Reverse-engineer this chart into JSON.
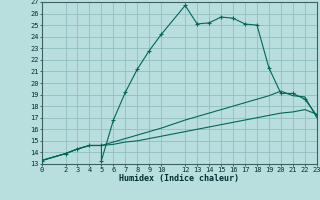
{
  "title": "",
  "xlabel": "Humidex (Indice chaleur)",
  "bg_color": "#b8dede",
  "grid_color": "#90c0c0",
  "line_color": "#006858",
  "xlim": [
    0,
    23
  ],
  "ylim": [
    13,
    27
  ],
  "xticks": [
    0,
    2,
    3,
    4,
    5,
    6,
    7,
    8,
    9,
    10,
    12,
    13,
    14,
    15,
    16,
    17,
    18,
    19,
    20,
    21,
    22,
    23
  ],
  "yticks": [
    13,
    14,
    15,
    16,
    17,
    18,
    19,
    20,
    21,
    22,
    23,
    24,
    25,
    26,
    27
  ],
  "line1_x": [
    0,
    2,
    3,
    4,
    5,
    5,
    6,
    7,
    8,
    9,
    10,
    12,
    13,
    14,
    15,
    16,
    17,
    18,
    19,
    20,
    21,
    22,
    23
  ],
  "line1_y": [
    13.3,
    13.9,
    14.3,
    14.6,
    14.6,
    13.3,
    16.8,
    19.2,
    21.2,
    22.8,
    24.2,
    26.7,
    25.1,
    25.2,
    25.7,
    25.6,
    25.1,
    25.0,
    21.3,
    19.1,
    19.1,
    18.6,
    17.2
  ],
  "line2_x": [
    0,
    2,
    3,
    4,
    5,
    6,
    7,
    8,
    9,
    10,
    12,
    13,
    14,
    15,
    16,
    17,
    18,
    19,
    20,
    21,
    22,
    23
  ],
  "line2_y": [
    13.3,
    13.9,
    14.3,
    14.6,
    14.6,
    14.9,
    15.2,
    15.5,
    15.8,
    16.1,
    16.8,
    17.1,
    17.4,
    17.7,
    18.0,
    18.3,
    18.6,
    18.9,
    19.3,
    18.9,
    18.8,
    17.0
  ],
  "line3_x": [
    0,
    2,
    3,
    4,
    5,
    6,
    7,
    8,
    9,
    10,
    12,
    13,
    14,
    15,
    16,
    17,
    18,
    19,
    20,
    21,
    22,
    23
  ],
  "line3_y": [
    13.3,
    13.9,
    14.3,
    14.6,
    14.6,
    14.7,
    14.9,
    15.0,
    15.2,
    15.4,
    15.8,
    16.0,
    16.2,
    16.4,
    16.6,
    16.8,
    17.0,
    17.2,
    17.4,
    17.5,
    17.7,
    17.3
  ]
}
